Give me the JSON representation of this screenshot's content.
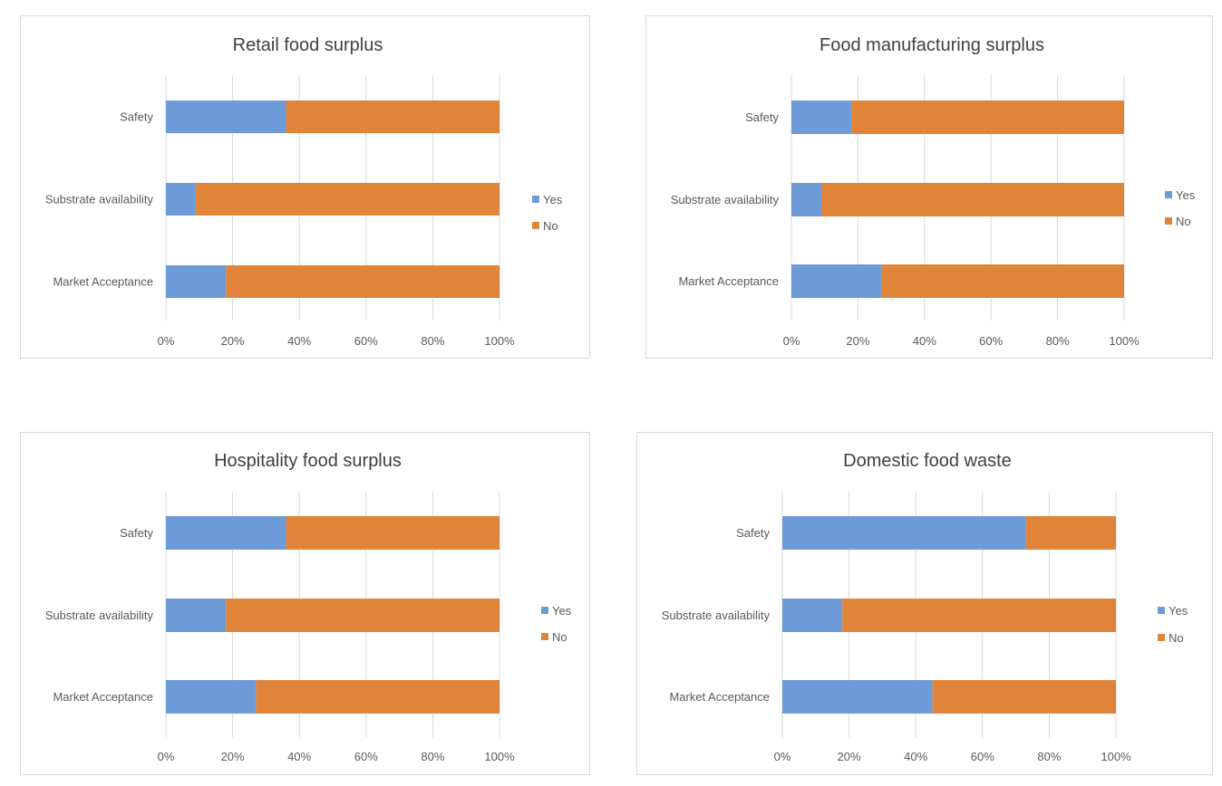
{
  "colors": {
    "yes": "#6c9bd7",
    "no": "#e0843a",
    "grid": "#d9d9d9",
    "text": "#595959",
    "title": "#404040"
  },
  "chart_data": [
    {
      "type": "bar",
      "orientation": "horizontal",
      "stacked": "percent",
      "title": "Retail food surplus",
      "categories": [
        "Safety",
        "Substrate availability",
        "Market Acceptance"
      ],
      "series": [
        {
          "name": "Yes",
          "values": [
            36,
            9,
            18
          ]
        },
        {
          "name": "No",
          "values": [
            64,
            91,
            82
          ]
        }
      ],
      "xticks": [
        "0%",
        "20%",
        "40%",
        "60%",
        "80%",
        "100%"
      ],
      "xlim": [
        0,
        100
      ],
      "legend": "right"
    },
    {
      "type": "bar",
      "orientation": "horizontal",
      "stacked": "percent",
      "title": "Food manufacturing surplus",
      "categories": [
        "Safety",
        "Substrate availability",
        "Market Acceptance"
      ],
      "series": [
        {
          "name": "Yes",
          "values": [
            18,
            9,
            27
          ]
        },
        {
          "name": "No",
          "values": [
            82,
            91,
            73
          ]
        }
      ],
      "xticks": [
        "0%",
        "20%",
        "40%",
        "60%",
        "80%",
        "100%"
      ],
      "xlim": [
        0,
        100
      ],
      "legend": "right"
    },
    {
      "type": "bar",
      "orientation": "horizontal",
      "stacked": "percent",
      "title": "Hospitality food surplus",
      "categories": [
        "Safety",
        "Substrate availability",
        "Market Acceptance"
      ],
      "series": [
        {
          "name": "Yes",
          "values": [
            36,
            18,
            27
          ]
        },
        {
          "name": "No",
          "values": [
            64,
            82,
            73
          ]
        }
      ],
      "xticks": [
        "0%",
        "20%",
        "40%",
        "60%",
        "80%",
        "100%"
      ],
      "xlim": [
        0,
        100
      ],
      "legend": "right"
    },
    {
      "type": "bar",
      "orientation": "horizontal",
      "stacked": "percent",
      "title": "Domestic food waste",
      "categories": [
        "Safety",
        "Substrate availability",
        "Market Acceptance"
      ],
      "series": [
        {
          "name": "Yes",
          "values": [
            73,
            18,
            45
          ]
        },
        {
          "name": "No",
          "values": [
            27,
            82,
            55
          ]
        }
      ],
      "xticks": [
        "0%",
        "20%",
        "40%",
        "60%",
        "80%",
        "100%"
      ],
      "xlim": [
        0,
        100
      ],
      "legend": "right"
    }
  ]
}
